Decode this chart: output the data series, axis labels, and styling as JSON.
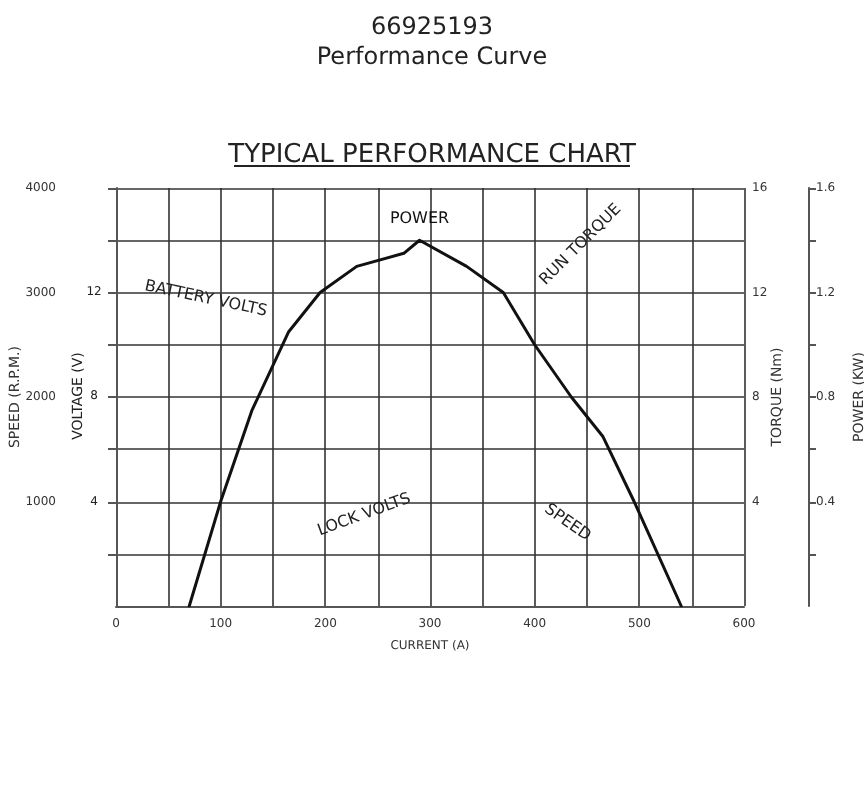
{
  "chart_data": {
    "type": "line",
    "title": "66925193",
    "subtitle": "Performance Curve",
    "annotations": [
      "TYPICAL PERFORMANCE CHART",
      "BATTERY VOLTS",
      "RUN TORQUE",
      "LOCK VOLTS",
      "SPEED",
      "VOLTAGE (V)",
      "12",
      "8",
      "4"
    ],
    "xlabel": "CURRENT (A)",
    "ylabel": "SPEED (R.P.M.)",
    "y2label": "TORQUE (Nm)",
    "y3label": "POWER (KW)",
    "x": [
      70,
      100,
      130,
      165,
      195,
      230,
      275,
      290,
      335,
      370,
      400,
      435,
      465,
      495,
      540
    ],
    "series": [
      {
        "name": "POWER",
        "color": "#111111",
        "axis": "y3",
        "values": [
          0,
          0.4,
          0.75,
          1.05,
          1.2,
          1.3,
          1.35,
          1.4,
          1.3,
          1.2,
          1,
          0.8,
          0.65,
          0.4,
          0
        ]
      }
    ],
    "xlim": [
      0,
      600
    ],
    "xticks": [
      0,
      {
        "value": 50,
        "label": null
      },
      100,
      {
        "value": 150,
        "label": null
      },
      200,
      {
        "value": 250,
        "label": null
      },
      300,
      {
        "value": 350,
        "label": null
      },
      400,
      {
        "value": 450,
        "label": null
      },
      500,
      {
        "value": 550,
        "label": null
      },
      600
    ],
    "ylim": [
      0,
      4000
    ],
    "yticks": [
      {
        "value": 500,
        "label": null
      },
      1000,
      {
        "value": 1500,
        "label": null
      },
      2000,
      {
        "value": 2500,
        "label": null
      },
      3000,
      {
        "value": 3500,
        "label": null
      },
      4000
    ],
    "y2lim": [
      0,
      16
    ],
    "y2ticks": [
      4,
      8,
      12,
      16
    ],
    "y3lim": [
      0,
      1.6
    ],
    "y3ticks": [
      {
        "value": 0.2,
        "label": null
      },
      0.4,
      {
        "value": 0.6,
        "label": null
      },
      0.8,
      {
        "value": 1,
        "label": null
      },
      1.2,
      {
        "value": 1.4,
        "label": null
      },
      1.6
    ],
    "grid": true,
    "legend": false,
    "marker": "none",
    "line_style": "solid"
  }
}
